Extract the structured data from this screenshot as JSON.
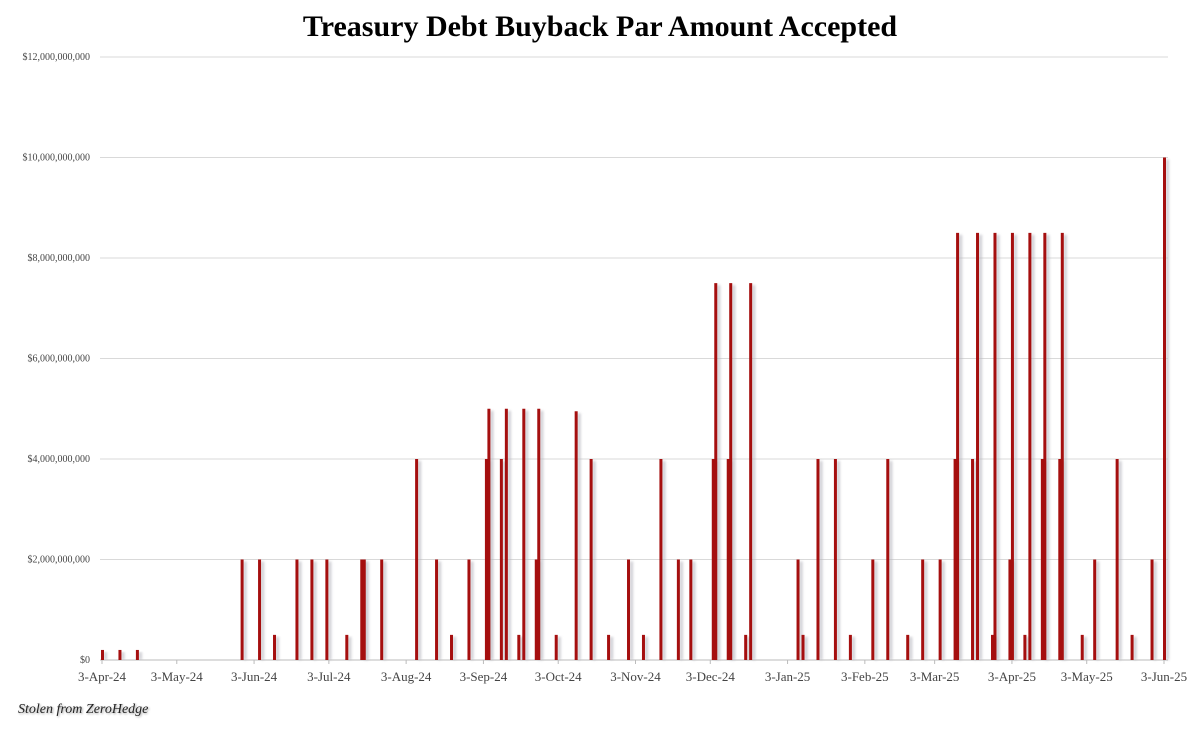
{
  "chart_data": {
    "type": "bar",
    "title": "Treasury Debt Buyback Par Amount Accepted",
    "xlabel": "",
    "ylabel": "",
    "ylim": [
      0,
      12000000000
    ],
    "yticks": [
      0,
      2000000000,
      4000000000,
      6000000000,
      8000000000,
      10000000000,
      12000000000
    ],
    "ytick_labels": [
      "$0",
      "$2,000,000,000",
      "$4,000,000,000",
      "$6,000,000,000",
      "$8,000,000,000",
      "$10,000,000,000",
      "$12,000,000,000"
    ],
    "xlim": [
      "2024-04-03",
      "2025-06-03"
    ],
    "xticks": [
      "2024-04-03",
      "2024-05-03",
      "2024-06-03",
      "2024-07-03",
      "2024-08-03",
      "2024-09-03",
      "2024-10-03",
      "2024-11-03",
      "2024-12-03",
      "2025-01-03",
      "2025-02-03",
      "2025-03-03",
      "2025-04-03",
      "2025-05-03",
      "2025-06-03"
    ],
    "xtick_labels": [
      "3-Apr-24",
      "3-May-24",
      "3-Jun-24",
      "3-Jul-24",
      "3-Aug-24",
      "3-Sep-24",
      "3-Oct-24",
      "3-Nov-24",
      "3-Dec-24",
      "3-Jan-25",
      "3-Feb-25",
      "3-Mar-25",
      "3-Apr-25",
      "3-May-25",
      "3-Jun-25"
    ],
    "grid": true,
    "bar_color": "#a50f0f",
    "points": [
      [
        "2024-04-03",
        200000000
      ],
      [
        "2024-04-10",
        200000000
      ],
      [
        "2024-04-17",
        200000000
      ],
      [
        "2024-05-29",
        2000000000
      ],
      [
        "2024-06-05",
        2000000000
      ],
      [
        "2024-06-11",
        500000000
      ],
      [
        "2024-06-20",
        2000000000
      ],
      [
        "2024-06-26",
        2000000000
      ],
      [
        "2024-07-02",
        2000000000
      ],
      [
        "2024-07-10",
        500000000
      ],
      [
        "2024-07-16",
        2000000000
      ],
      [
        "2024-07-17",
        2000000000
      ],
      [
        "2024-07-24",
        2000000000
      ],
      [
        "2024-08-07",
        4000000000
      ],
      [
        "2024-08-15",
        2000000000
      ],
      [
        "2024-08-21",
        500000000
      ],
      [
        "2024-08-28",
        2000000000
      ],
      [
        "2024-09-04",
        4000000000
      ],
      [
        "2024-09-05",
        5000000000
      ],
      [
        "2024-09-10",
        4000000000
      ],
      [
        "2024-09-12",
        5000000000
      ],
      [
        "2024-09-17",
        500000000
      ],
      [
        "2024-09-19",
        5000000000
      ],
      [
        "2024-09-24",
        2000000000
      ],
      [
        "2024-09-25",
        5000000000
      ],
      [
        "2024-10-02",
        500000000
      ],
      [
        "2024-10-10",
        4950000000
      ],
      [
        "2024-10-16",
        4000000000
      ],
      [
        "2024-10-23",
        500000000
      ],
      [
        "2024-10-31",
        2000000000
      ],
      [
        "2024-11-06",
        500000000
      ],
      [
        "2024-11-13",
        4000000000
      ],
      [
        "2024-11-20",
        2000000000
      ],
      [
        "2024-11-25",
        2000000000
      ],
      [
        "2024-12-04",
        4000000000
      ],
      [
        "2024-12-05",
        7500000000
      ],
      [
        "2024-12-10",
        4000000000
      ],
      [
        "2024-12-11",
        7500000000
      ],
      [
        "2024-12-17",
        500000000
      ],
      [
        "2024-12-19",
        7500000000
      ],
      [
        "2025-01-07",
        2000000000
      ],
      [
        "2025-01-09",
        500000000
      ],
      [
        "2025-01-15",
        4000000000
      ],
      [
        "2025-01-22",
        4000000000
      ],
      [
        "2025-01-28",
        500000000
      ],
      [
        "2025-02-06",
        2000000000
      ],
      [
        "2025-02-12",
        4000000000
      ],
      [
        "2025-02-20",
        500000000
      ],
      [
        "2025-02-26",
        2000000000
      ],
      [
        "2025-03-05",
        2000000000
      ],
      [
        "2025-03-11",
        4000000000
      ],
      [
        "2025-03-12",
        8500000000
      ],
      [
        "2025-03-18",
        4000000000
      ],
      [
        "2025-03-20",
        8500000000
      ],
      [
        "2025-03-26",
        500000000
      ],
      [
        "2025-03-27",
        8500000000
      ],
      [
        "2025-04-02",
        2000000000
      ],
      [
        "2025-04-03",
        8500000000
      ],
      [
        "2025-04-08",
        500000000
      ],
      [
        "2025-04-10",
        8500000000
      ],
      [
        "2025-04-15",
        4000000000
      ],
      [
        "2025-04-16",
        8500000000
      ],
      [
        "2025-04-22",
        4000000000
      ],
      [
        "2025-04-23",
        8500000000
      ],
      [
        "2025-05-01",
        500000000
      ],
      [
        "2025-05-06",
        2000000000
      ],
      [
        "2025-05-15",
        4000000000
      ],
      [
        "2025-05-21",
        500000000
      ],
      [
        "2025-05-29",
        2000000000
      ],
      [
        "2025-06-03",
        10000000000
      ]
    ]
  },
  "footer": {
    "watermark": "Stolen from ZeroHedge"
  }
}
